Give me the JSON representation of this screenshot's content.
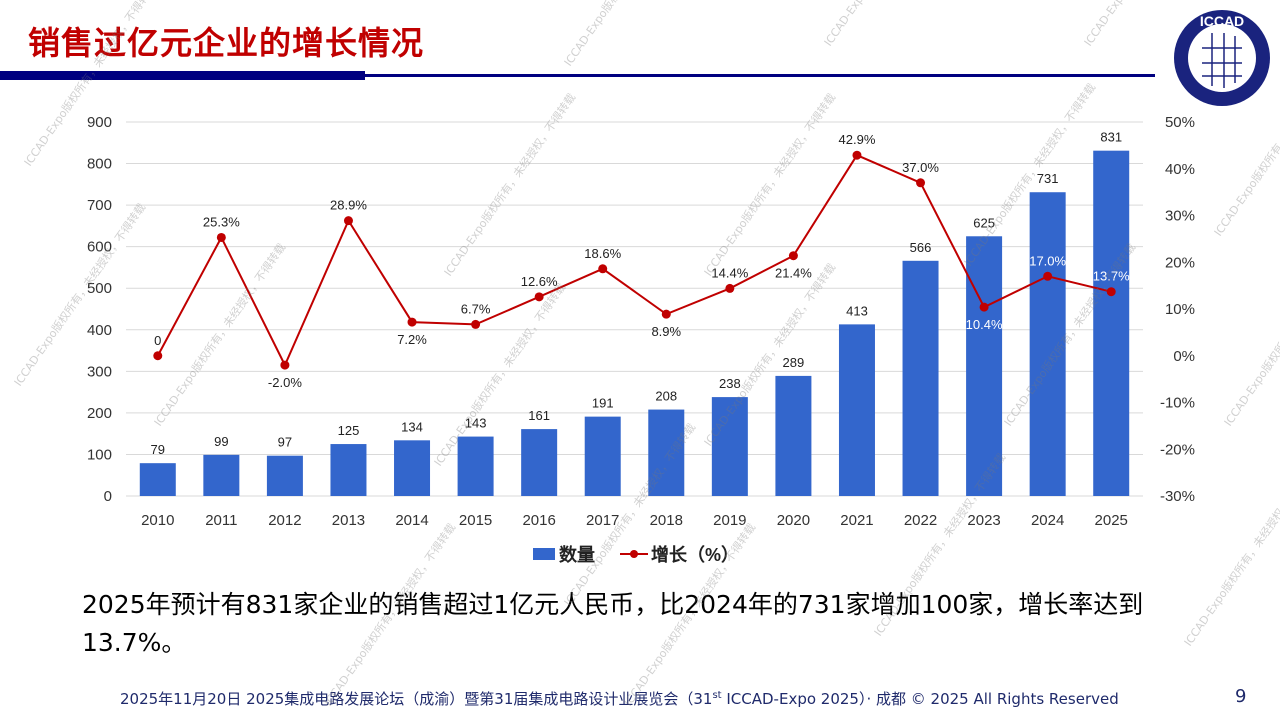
{
  "slide": {
    "title": "销售过亿元企业的增长情况",
    "logo_text": "ICCAD",
    "watermark": "ICCAD-Expo版权所有，未经授权，不得转载",
    "summary": "2025年预计有831家企业的销售超过1亿元人民币，比2024年的731家增加100家，增长率达到13.7%。",
    "footer_pre": "2025年11月20日 2025集成电路发展论坛（成渝）暨第31届集成电路设计业展览会（31",
    "footer_sup": "st",
    "footer_post": " ICCAD-Expo 2025）· 成都 © 2025 All Rights Reserved",
    "page_number": "9",
    "colors": {
      "title": "#c00000",
      "rule": "#000080",
      "bar": "#3366cc",
      "line": "#c00000"
    }
  },
  "chart_data": {
    "type": "bar+line",
    "categories": [
      "2010",
      "2011",
      "2012",
      "2013",
      "2014",
      "2015",
      "2016",
      "2017",
      "2018",
      "2019",
      "2020",
      "2021",
      "2022",
      "2023",
      "2024",
      "2025"
    ],
    "series": [
      {
        "name": "数量",
        "type": "bar",
        "axis": "left",
        "values": [
          79,
          99,
          97,
          125,
          134,
          143,
          161,
          191,
          208,
          238,
          289,
          413,
          566,
          625,
          731,
          831
        ]
      },
      {
        "name": "增长（%）",
        "type": "line",
        "axis": "right",
        "values": [
          0,
          25.3,
          -2.0,
          28.9,
          7.2,
          6.7,
          12.6,
          18.6,
          8.9,
          14.4,
          21.4,
          42.9,
          37.0,
          10.4,
          17.0,
          13.7
        ],
        "labels": [
          "0",
          "25.3%",
          "-2.0%",
          "28.9%",
          "7.2%",
          "6.7%",
          "12.6%",
          "18.6%",
          "8.9%",
          "14.4%",
          "21.4%",
          "42.9%",
          "37.0%",
          "10.4%",
          "17.0%",
          "13.7%"
        ]
      }
    ],
    "y_left": {
      "ylim": [
        0,
        900
      ],
      "ticks": [
        "0",
        "100",
        "200",
        "300",
        "400",
        "500",
        "600",
        "700",
        "800",
        "900"
      ]
    },
    "y_right": {
      "ylim": [
        -30,
        50
      ],
      "ticks": [
        "-30%",
        "-20%",
        "-10%",
        "0%",
        "10%",
        "20%",
        "30%",
        "40%",
        "50%"
      ]
    },
    "grid": true,
    "legend": "bottom"
  }
}
